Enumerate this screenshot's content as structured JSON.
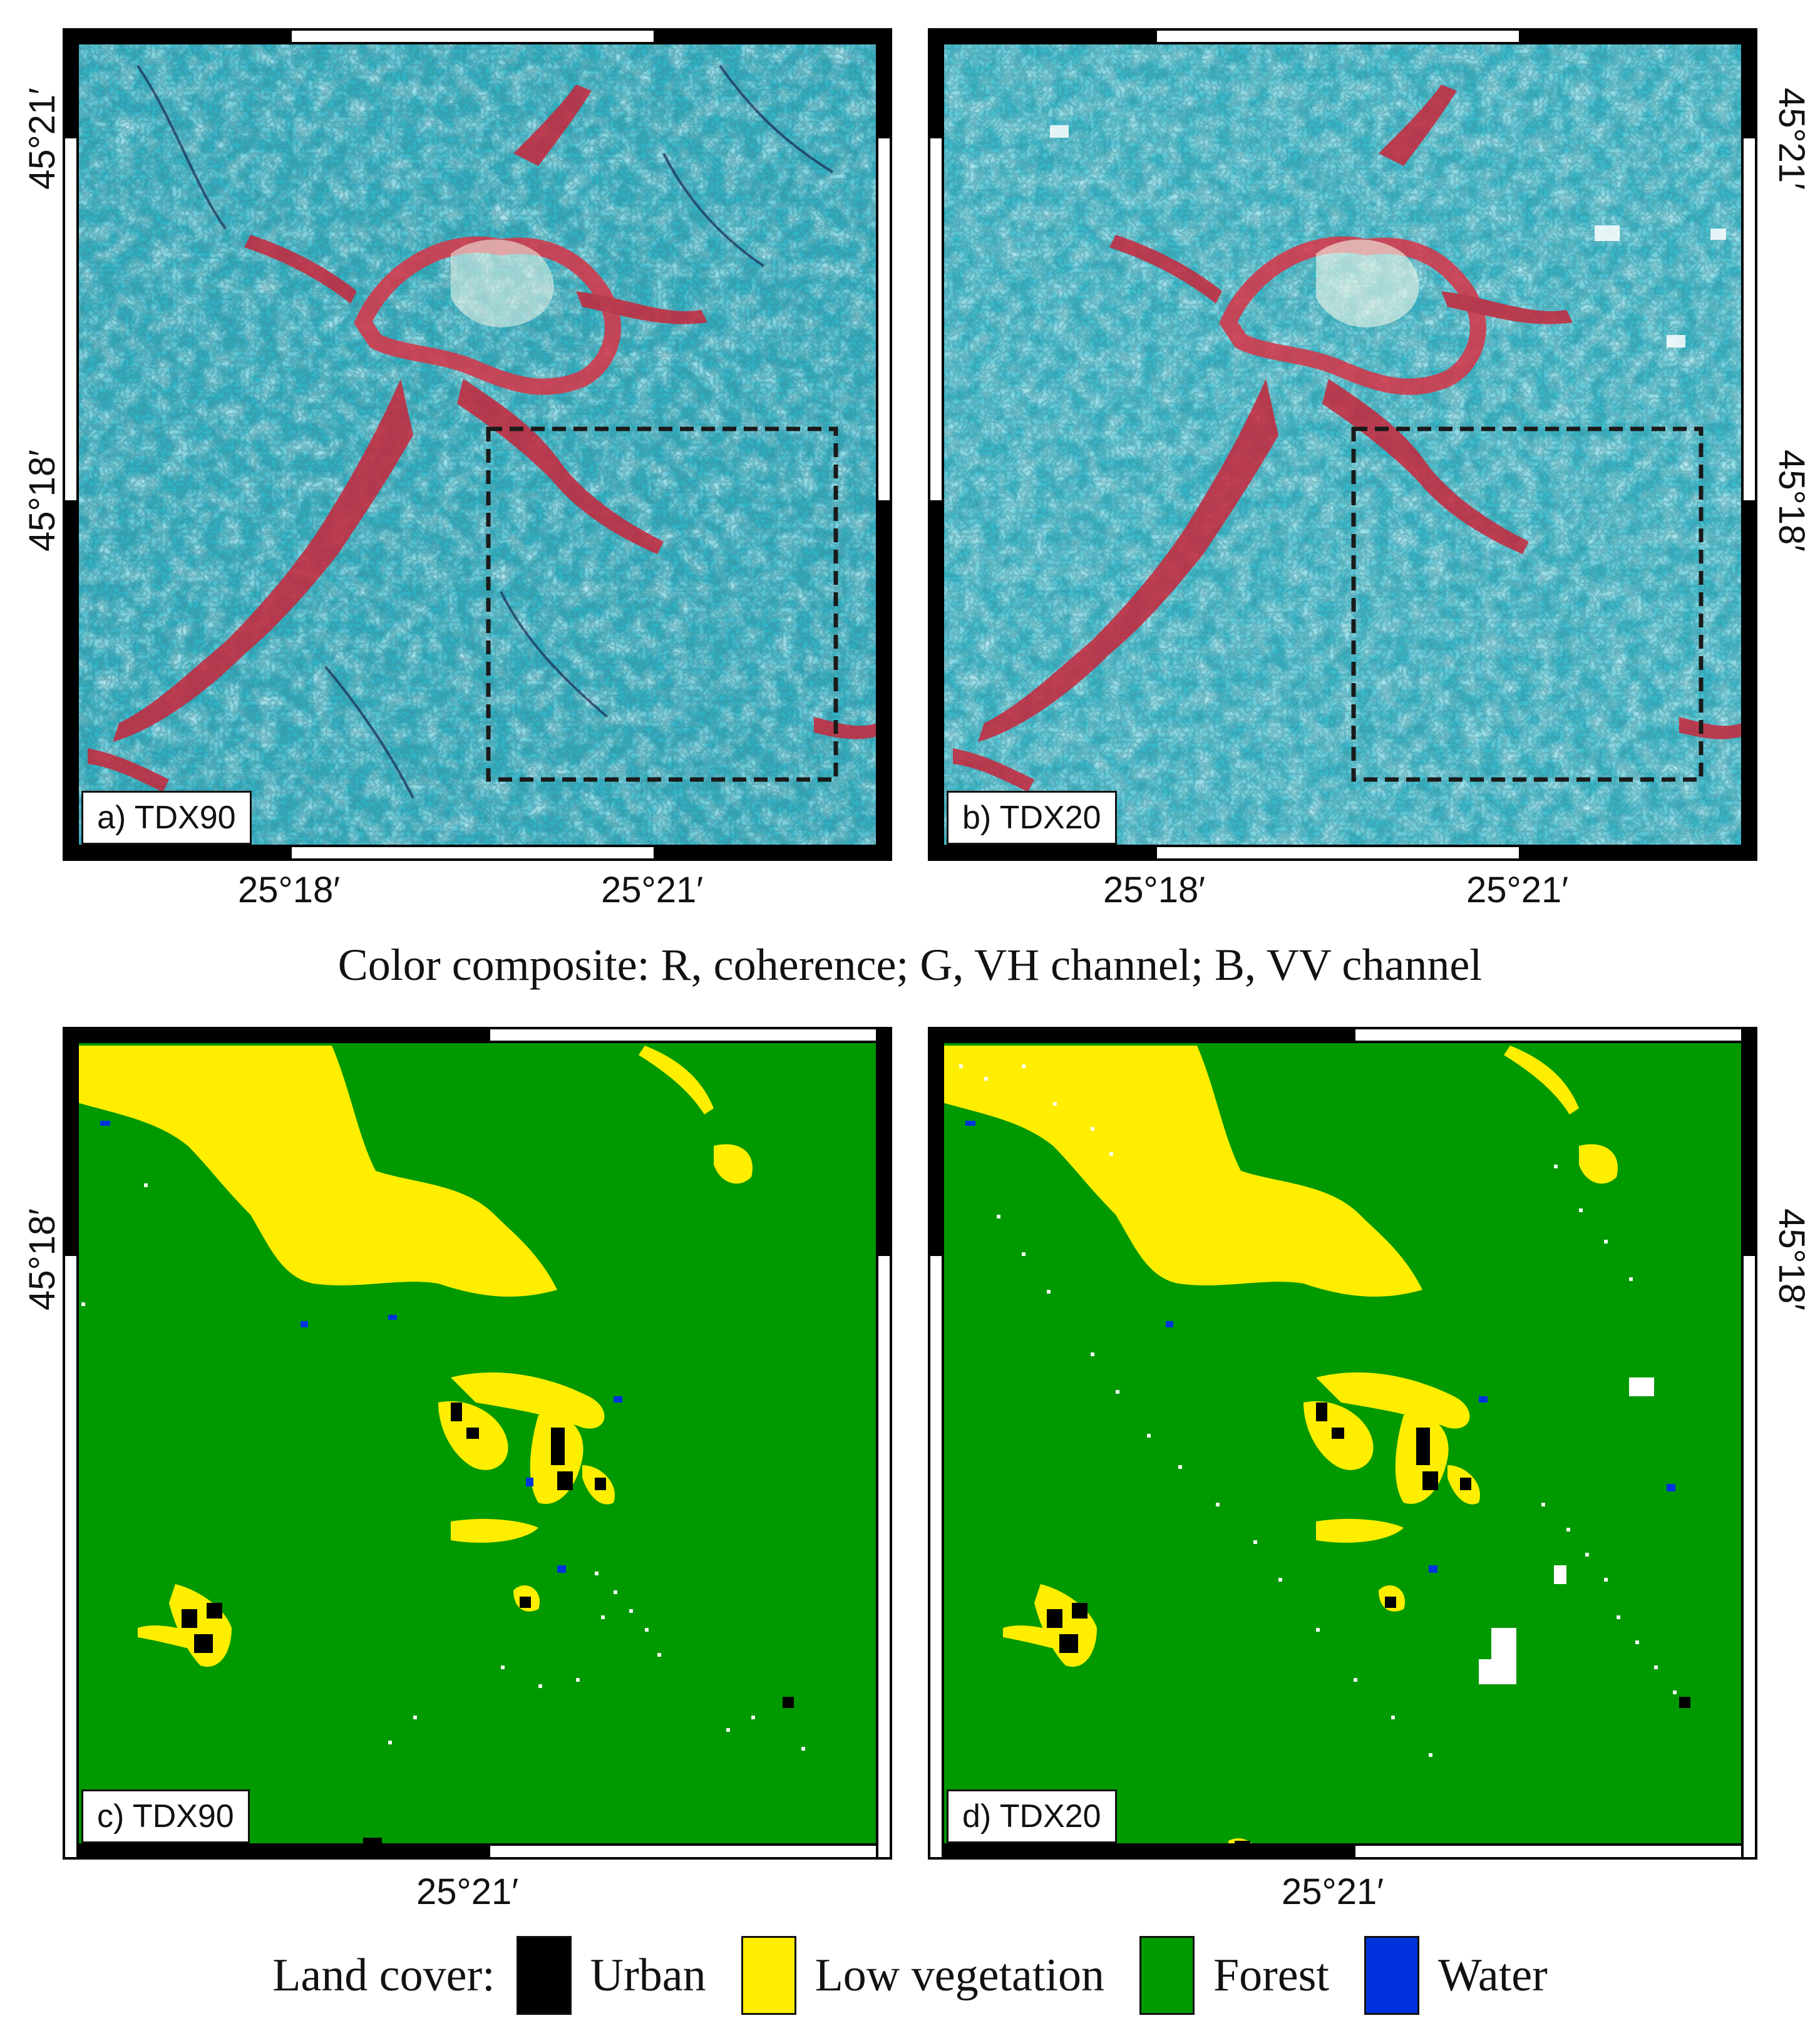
{
  "panels": {
    "a": {
      "tag": "a) TDX90",
      "lat_top": "45°21′",
      "lat_mid": "45°18′",
      "lon_left": "25°18′",
      "lon_right": "25°21′"
    },
    "b": {
      "tag": "b) TDX20",
      "lat_top": "45°21′",
      "lat_mid": "45°18′",
      "lon_left": "25°18′",
      "lon_right": "25°21′"
    },
    "c": {
      "tag": "c) TDX90",
      "lat": "45°18′",
      "lon": "25°21′"
    },
    "d": {
      "tag": "d) TDX20",
      "lat": "45°18′",
      "lon": "25°21′"
    }
  },
  "caption": "Color composite: R, coherence; G, VH channel; B, VV channel",
  "legend": {
    "title": "Land cover:",
    "items": [
      {
        "label": "Urban",
        "color": "#000000"
      },
      {
        "label": "Low vegetation",
        "color": "#ffee00"
      },
      {
        "label": "Forest",
        "color": "#009900"
      },
      {
        "label": "Water",
        "color": "#0033dd"
      }
    ]
  },
  "colors": {
    "sar_base": "#2fb3c6",
    "sar_coherence": "#c8263b",
    "forest": "#009900",
    "low_vegetation": "#ffee00",
    "urban": "#000000",
    "water": "#0033dd"
  }
}
